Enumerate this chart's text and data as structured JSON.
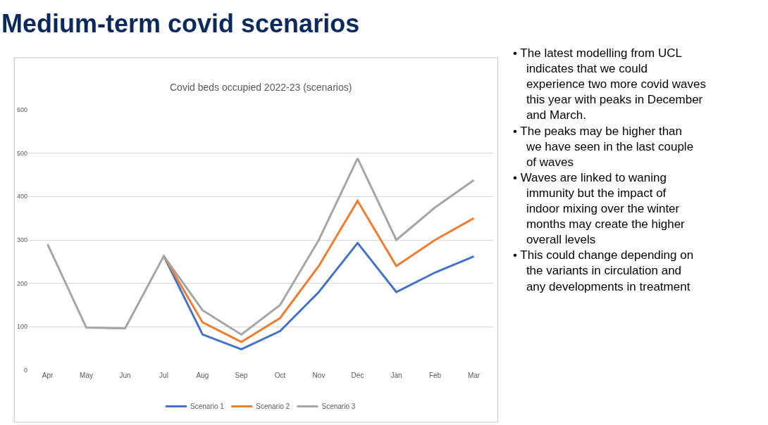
{
  "chart_data": {
    "type": "line",
    "title": "Medium-term covid scenarios",
    "subtitle": "Covid beds occupied 2022-23 (scenarios)",
    "categories": [
      "Apr",
      "May",
      "Jun",
      "Jul",
      "Aug",
      "Sep",
      "Oct",
      "Nov",
      "Dec",
      "Jan",
      "Feb",
      "Mar"
    ],
    "series": [
      {
        "name": "Scenario 1",
        "color": "#4472c4",
        "values": [
          null,
          null,
          null,
          263,
          82,
          48,
          90,
          180,
          293,
          180,
          225,
          262
        ]
      },
      {
        "name": "Scenario 2",
        "color": "#ed7d31",
        "values": [
          null,
          null,
          null,
          263,
          110,
          65,
          120,
          240,
          390,
          240,
          300,
          350
        ]
      },
      {
        "name": "Scenario 3",
        "color": "#a5a5a5",
        "values": [
          290,
          98,
          96,
          263,
          138,
          82,
          150,
          300,
          488,
          300,
          375,
          438
        ]
      }
    ],
    "ylim": [
      0,
      600
    ],
    "yticks": [
      0,
      100,
      200,
      300,
      400,
      500,
      600
    ],
    "grid": "y",
    "legend": "bottom",
    "marker": "none",
    "line_style": "solid",
    "annotations": [
      "• The latest modelling from UCL indicates that we could experience two more covid waves this year with peaks in December and March.",
      "• The peaks may be higher than we have seen in the last couple of waves",
      "• Waves are linked to waning immunity but the impact of indoor mixing over the winter months may create the higher overall levels",
      "• This could change depending on the variants in circulation and any developments in treatment"
    ]
  }
}
